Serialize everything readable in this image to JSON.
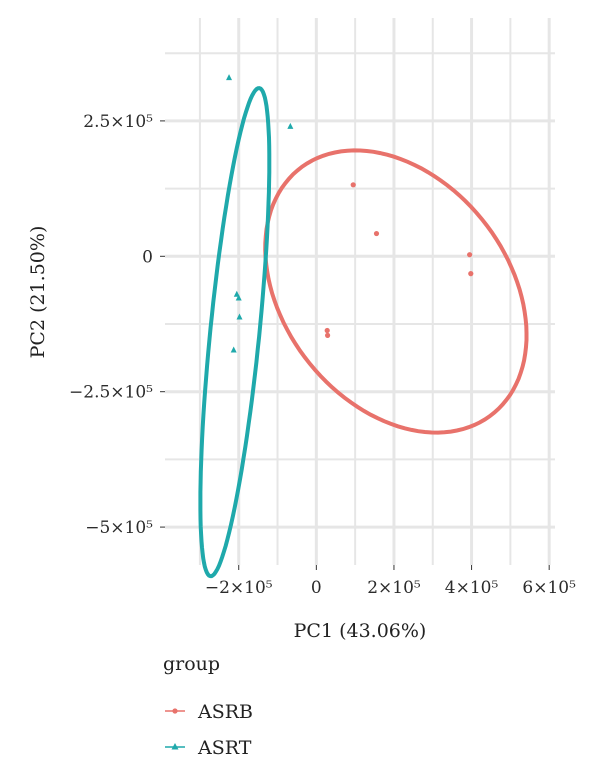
{
  "chart_data": {
    "type": "scatter",
    "xlabel": "PC1 (43.06%)",
    "ylabel": "PC2 (21.50%)",
    "xlim": [
      -390000,
      615000
    ],
    "ylim": [
      -570000,
      440000
    ],
    "grid": true,
    "x_ticks": [
      {
        "value": -200000,
        "label": "−2×10⁵"
      },
      {
        "value": 0,
        "label": "0"
      },
      {
        "value": 200000,
        "label": "2×10⁵"
      },
      {
        "value": 400000,
        "label": "4×10⁵"
      },
      {
        "value": 600000,
        "label": "6×10⁵"
      }
    ],
    "y_ticks": [
      {
        "value": 250000,
        "label": "2.5×10⁵"
      },
      {
        "value": 0,
        "label": "0"
      },
      {
        "value": -250000,
        "label": "−2.5×10⁵"
      },
      {
        "value": -500000,
        "label": "−5×10⁵"
      }
    ],
    "legend": {
      "title": "group",
      "position": "bottom-left"
    },
    "series": [
      {
        "name": "ASRB",
        "color": "#e8726b",
        "marker": "circle",
        "points": [
          {
            "x": 95000,
            "y": 132000
          },
          {
            "x": 155000,
            "y": 42000
          },
          {
            "x": 395000,
            "y": 3000
          },
          {
            "x": 398000,
            "y": -32000
          },
          {
            "x": 28000,
            "y": -137000
          },
          {
            "x": 29000,
            "y": -146000
          }
        ],
        "ellipse": {
          "cx": 205000,
          "cy": -65000,
          "rx": 355000,
          "ry": 235000,
          "rotation_deg": -25
        }
      },
      {
        "name": "ASRT",
        "color": "#1fa9ab",
        "marker": "triangle",
        "points": [
          {
            "x": -225000,
            "y": 330000
          },
          {
            "x": -67000,
            "y": 240000
          },
          {
            "x": -205000,
            "y": -70000
          },
          {
            "x": -200000,
            "y": -77000
          },
          {
            "x": -198000,
            "y": -112000
          },
          {
            "x": -213000,
            "y": -173000
          }
        ],
        "ellipse": {
          "cx": -210000,
          "cy": -140000,
          "rx": 63000,
          "ry": 455000,
          "rotation_deg": -8
        }
      }
    ]
  }
}
